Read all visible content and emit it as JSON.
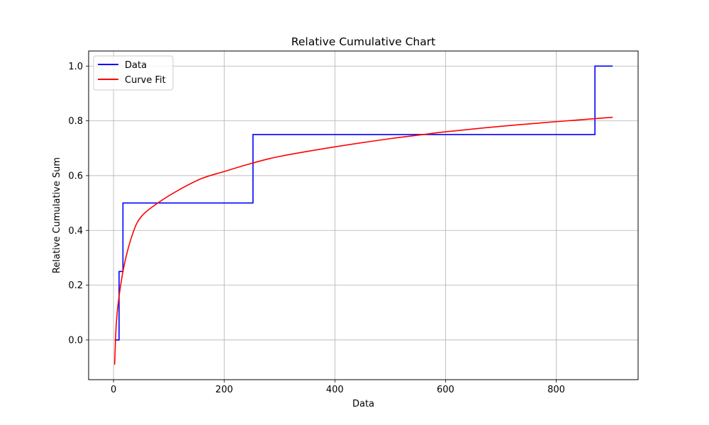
{
  "chart_data": {
    "type": "line",
    "title": "Relative Cumulative Chart",
    "xlabel": "Data",
    "ylabel": "Relative Cumulative Sum",
    "xlim": [
      -45,
      948
    ],
    "ylim": [
      -0.145,
      1.055
    ],
    "xticks": [
      0,
      200,
      400,
      600,
      800
    ],
    "xtick_labels": [
      "0",
      "200",
      "400",
      "600",
      "800"
    ],
    "yticks": [
      0.0,
      0.2,
      0.4,
      0.6,
      0.8,
      1.0
    ],
    "ytick_labels": [
      "0.0",
      "0.2",
      "0.4",
      "0.6",
      "0.8",
      "1.0"
    ],
    "grid": true,
    "legend_position": "top-left",
    "series": [
      {
        "name": "Data",
        "color": "#0000ff",
        "style": "step",
        "x": [
          2,
          10,
          10,
          17,
          17,
          19,
          19,
          252,
          252,
          870,
          870,
          902
        ],
        "y": [
          0.0,
          0.0,
          0.25,
          0.25,
          0.5,
          0.5,
          0.5,
          0.5,
          0.75,
          0.75,
          1.0,
          1.0
        ]
      },
      {
        "name": "Curve Fit",
        "color": "#ff0000",
        "style": "curve",
        "x": [
          2,
          5,
          10,
          20,
          35,
          50,
          80,
          120,
          160,
          200,
          250,
          300,
          400,
          500,
          560,
          600,
          700,
          800,
          902
        ],
        "y": [
          -0.09,
          0.06,
          0.16,
          0.28,
          0.39,
          0.45,
          0.5,
          0.55,
          0.59,
          0.615,
          0.645,
          0.67,
          0.705,
          0.735,
          0.75,
          0.76,
          0.78,
          0.797,
          0.813
        ]
      }
    ]
  }
}
